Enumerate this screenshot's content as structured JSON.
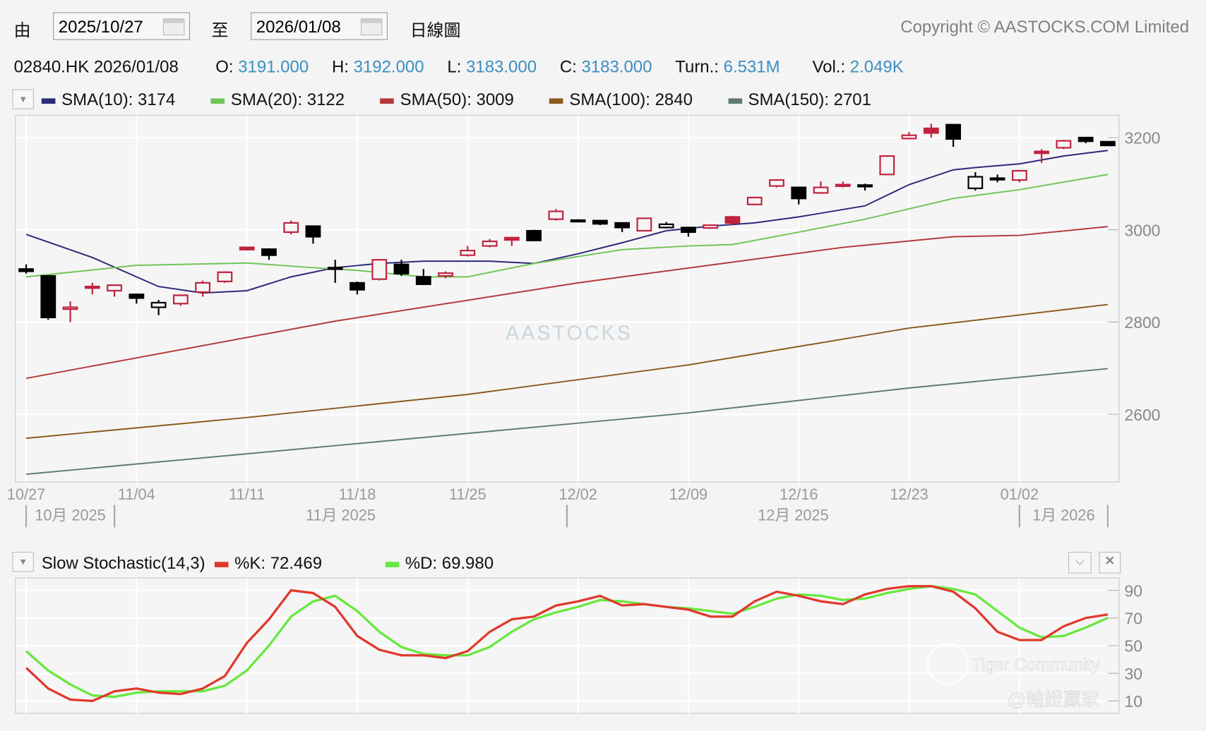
{
  "header": {
    "from_label": "由",
    "from_date": "2025/10/27",
    "to_label": "至",
    "to_date": "2026/01/08",
    "chart_type": "日線圖",
    "copyright": "Copyright © AASTOCKS.COM Limited"
  },
  "quote": {
    "symbol_date": "02840.HK 2026/01/08",
    "open_label": "O:",
    "open": "3191.000",
    "high_label": "H:",
    "high": "3192.000",
    "low_label": "L:",
    "low": "3183.000",
    "close_label": "C:",
    "close": "3183.000",
    "turn_label": "Turn.:",
    "turn": "6.531M",
    "vol_label": "Vol.:",
    "vol": "2.049K"
  },
  "colors": {
    "up": "#c0223f",
    "down": "#000000",
    "sma10": "#2b2a7a",
    "sma20": "#72c45a",
    "sma50": "#b23a3a",
    "sma100": "#8a5a1e",
    "sma150": "#5f7a74",
    "k": "#e0382c",
    "d": "#66e83c",
    "value_blue": "#3a8fc0"
  },
  "watermarks": {
    "brand": "AASTOCKS",
    "community": "Tiger Community",
    "author": "@輪證贏家"
  },
  "chart_data": [
    {
      "type": "candlestick",
      "title": "02840.HK",
      "legend": [
        "SMA(10): 3174",
        "SMA(20): 3122",
        "SMA(50): 3009",
        "SMA(100): 2840",
        "SMA(150): 2701"
      ],
      "y_ticks": [
        "3200",
        "3000",
        "2800",
        "2600"
      ],
      "ylim": [
        2450,
        3245
      ],
      "x_ticks": [
        {
          "label": "10/27",
          "index": 0
        },
        {
          "label": "11/04",
          "index": 5
        },
        {
          "label": "11/11",
          "index": 10
        },
        {
          "label": "11/18",
          "index": 15
        },
        {
          "label": "11/25",
          "index": 20
        },
        {
          "label": "12/02",
          "index": 25
        },
        {
          "label": "12/09",
          "index": 30
        },
        {
          "label": "12/16",
          "index": 35
        },
        {
          "label": "12/23",
          "index": 40
        },
        {
          "label": "01/02",
          "index": 45
        }
      ],
      "months": [
        {
          "label": "10月 2025",
          "from": 0,
          "to": 4
        },
        {
          "label": "11月 2025",
          "from": 4,
          "to": 24.5
        },
        {
          "label": "12月 2025",
          "from": 24.5,
          "to": 45
        },
        {
          "label": "1月 2026",
          "from": 45,
          "to": 49
        }
      ],
      "candles_ohlc_style": [
        [
          2915,
          2925,
          2905,
          2910,
          "k"
        ],
        [
          2900,
          2900,
          2805,
          2810,
          "k"
        ],
        [
          2828,
          2845,
          2800,
          2832,
          "r"
        ],
        [
          2875,
          2885,
          2860,
          2877,
          "r"
        ],
        [
          2868,
          2880,
          2855,
          2880,
          "r"
        ],
        [
          2860,
          2862,
          2840,
          2852,
          "k"
        ],
        [
          2832,
          2848,
          2815,
          2842,
          "K"
        ],
        [
          2840,
          2860,
          2835,
          2858,
          "r"
        ],
        [
          2865,
          2890,
          2855,
          2885,
          "r"
        ],
        [
          2888,
          2910,
          2885,
          2908,
          "r"
        ],
        [
          2957,
          2963,
          2955,
          2962,
          "R"
        ],
        [
          2958,
          2960,
          2935,
          2945,
          "k"
        ],
        [
          2995,
          3020,
          2990,
          3015,
          "r"
        ],
        [
          3008,
          3008,
          2970,
          2985,
          "k"
        ],
        [
          2918,
          2935,
          2885,
          2915,
          "k"
        ],
        [
          2885,
          2888,
          2860,
          2870,
          "k"
        ],
        [
          2893,
          2935,
          2890,
          2935,
          "r"
        ],
        [
          2925,
          2935,
          2900,
          2905,
          "k"
        ],
        [
          2898,
          2915,
          2880,
          2882,
          "k"
        ],
        [
          2900,
          2910,
          2895,
          2906,
          "r"
        ],
        [
          2945,
          2965,
          2942,
          2955,
          "r"
        ],
        [
          2965,
          2980,
          2962,
          2975,
          "r"
        ],
        [
          2978,
          2985,
          2965,
          2983,
          "R"
        ],
        [
          2998,
          3000,
          2975,
          2977,
          "k"
        ],
        [
          3023,
          3045,
          3020,
          3040,
          "r"
        ],
        [
          3021,
          3023,
          3017,
          3020,
          "k"
        ],
        [
          3020,
          3020,
          3010,
          3013,
          "k"
        ],
        [
          3015,
          3015,
          2995,
          3005,
          "k"
        ],
        [
          2998,
          3025,
          2998,
          3025,
          "r"
        ],
        [
          3005,
          3017,
          3003,
          3012,
          "K"
        ],
        [
          3005,
          3005,
          2985,
          2995,
          "k"
        ],
        [
          3004,
          3012,
          3002,
          3010,
          "r"
        ],
        [
          3015,
          3030,
          3010,
          3028,
          "R"
        ],
        [
          3055,
          3072,
          3053,
          3070,
          "r"
        ],
        [
          3095,
          3110,
          3092,
          3108,
          "r"
        ],
        [
          3092,
          3092,
          3055,
          3068,
          "k"
        ],
        [
          3080,
          3105,
          3078,
          3092,
          "r"
        ],
        [
          3098,
          3105,
          3092,
          3098,
          "r"
        ],
        [
          3097,
          3100,
          3085,
          3095,
          "k"
        ],
        [
          3120,
          3160,
          3120,
          3160,
          "r"
        ],
        [
          3198,
          3212,
          3196,
          3205,
          "r"
        ],
        [
          3210,
          3230,
          3200,
          3220,
          "R"
        ],
        [
          3228,
          3228,
          3180,
          3197,
          "k"
        ],
        [
          3090,
          3125,
          3085,
          3115,
          "K"
        ],
        [
          3112,
          3120,
          3103,
          3110,
          "k"
        ],
        [
          3108,
          3130,
          3103,
          3128,
          "r"
        ],
        [
          3166,
          3175,
          3145,
          3170,
          "R"
        ],
        [
          3178,
          3195,
          3175,
          3193,
          "r"
        ],
        [
          3200,
          3200,
          3188,
          3192,
          "k"
        ],
        [
          3191,
          3192,
          3183,
          3183,
          "k"
        ]
      ],
      "sma_series": [
        {
          "name": "SMA(10)",
          "points": [
            [
              0,
              2990
            ],
            [
              3,
              2940
            ],
            [
              6,
              2877
            ],
            [
              8,
              2863
            ],
            [
              10,
              2868
            ],
            [
              12,
              2898
            ],
            [
              14,
              2918
            ],
            [
              16,
              2927
            ],
            [
              18,
              2932
            ],
            [
              21,
              2932
            ],
            [
              23,
              2927
            ],
            [
              25,
              2948
            ],
            [
              27,
              2972
            ],
            [
              29,
              2998
            ],
            [
              31,
              3008
            ],
            [
              33,
              3015
            ],
            [
              35,
              3028
            ],
            [
              38,
              3052
            ],
            [
              40,
              3098
            ],
            [
              42,
              3130
            ],
            [
              43,
              3135
            ],
            [
              45,
              3143
            ],
            [
              47,
              3160
            ],
            [
              49,
              3172
            ]
          ]
        },
        {
          "name": "SMA(20)",
          "points": [
            [
              0,
              2898
            ],
            [
              5,
              2923
            ],
            [
              10,
              2928
            ],
            [
              13,
              2918
            ],
            [
              15,
              2912
            ],
            [
              18,
              2898
            ],
            [
              20,
              2898
            ],
            [
              23,
              2927
            ],
            [
              27,
              2957
            ],
            [
              30,
              2965
            ],
            [
              32,
              2968
            ],
            [
              35,
              2995
            ],
            [
              38,
              3023
            ],
            [
              42,
              3068
            ],
            [
              45,
              3087
            ],
            [
              49,
              3120
            ]
          ]
        },
        {
          "name": "SMA(50)",
          "points": [
            [
              0,
              2678
            ],
            [
              14,
              2802
            ],
            [
              25,
              2885
            ],
            [
              37,
              2962
            ],
            [
              42,
              2985
            ],
            [
              45,
              2988
            ],
            [
              49,
              3007
            ]
          ]
        },
        {
          "name": "SMA(100)",
          "points": [
            [
              0,
              2548
            ],
            [
              10,
              2593
            ],
            [
              20,
              2643
            ],
            [
              30,
              2707
            ],
            [
              40,
              2787
            ],
            [
              49,
              2838
            ]
          ]
        },
        {
          "name": "SMA(150)",
          "points": [
            [
              0,
              2470
            ],
            [
              14,
              2532
            ],
            [
              30,
              2603
            ],
            [
              40,
              2657
            ],
            [
              49,
              2699
            ]
          ]
        }
      ]
    },
    {
      "type": "line",
      "title": "Slow Stochastic(14,3)",
      "legend": [
        "%K: 72.469",
        "%D: 69.980"
      ],
      "y_ticks": [
        "90",
        "70",
        "50",
        "30",
        "10"
      ],
      "ylim": [
        0,
        98
      ],
      "series": [
        {
          "name": "%K",
          "values": [
            34,
            19,
            11,
            10,
            17,
            19,
            16,
            15,
            19,
            28,
            52,
            69,
            90,
            88,
            78,
            57,
            47,
            43,
            43,
            41,
            46,
            60,
            69,
            71,
            79,
            82,
            86,
            79,
            80,
            78,
            76,
            71,
            71,
            82,
            89,
            86,
            82,
            80,
            87,
            91,
            93,
            93,
            89,
            77,
            60,
            54,
            54,
            64,
            70,
            72.5
          ]
        },
        {
          "name": "%D",
          "values": [
            46,
            32,
            22,
            14,
            13,
            16,
            17,
            17,
            17,
            21,
            32,
            50,
            71,
            82,
            86,
            75,
            60,
            49,
            44,
            43,
            43,
            49,
            60,
            69,
            74,
            78,
            83,
            82,
            80,
            78,
            77,
            75,
            73,
            78,
            84,
            87,
            86,
            83,
            84,
            88,
            91,
            93,
            91,
            87,
            75,
            63,
            56,
            57,
            63,
            70
          ]
        }
      ]
    }
  ]
}
